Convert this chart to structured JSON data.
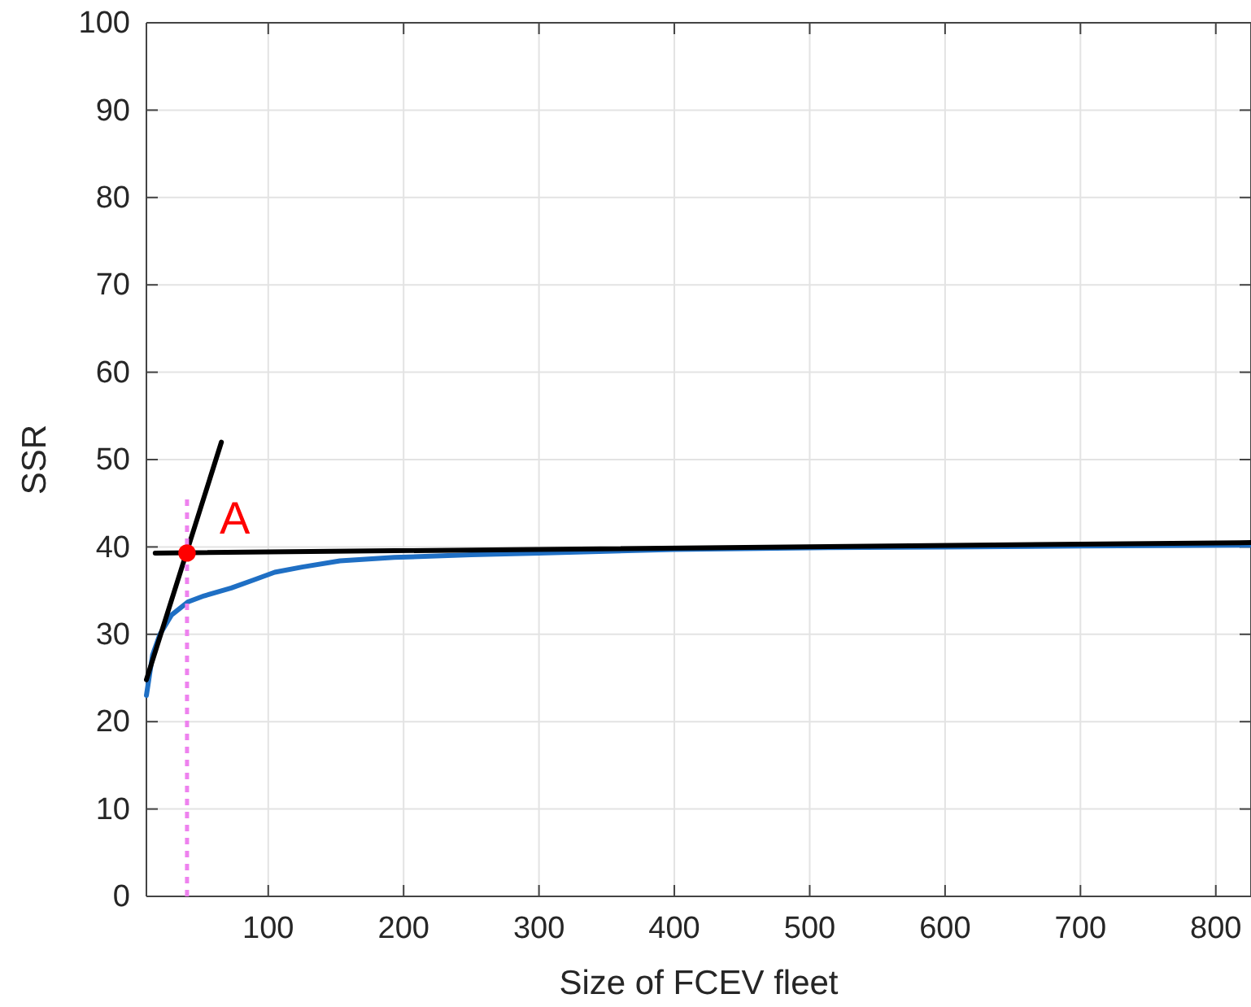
{
  "chart_data": {
    "type": "line",
    "xlabel": "Size of FCEV fleet",
    "ylabel": "SSR",
    "xlim": [
      10,
      826
    ],
    "ylim": [
      0,
      100
    ],
    "xticks": [
      100,
      200,
      300,
      400,
      500,
      600,
      700,
      800
    ],
    "yticks": [
      0,
      10,
      20,
      30,
      40,
      50,
      60,
      70,
      80,
      90,
      100
    ],
    "grid": true,
    "series": [
      {
        "color": "#1f6fc4",
        "x": [
          10,
          14.5,
          20,
          28.5,
          40.6,
          52.6,
          72.7,
          88.8,
          104.8,
          125,
          153,
          193,
          250,
          300,
          400,
          500,
          600,
          700,
          826
        ],
        "values": [
          23,
          27.6,
          30,
          32.2,
          33.7,
          34.4,
          35.3,
          36.2,
          37.1,
          37.7,
          38.4,
          38.8,
          39.1,
          39.3,
          39.7,
          39.9,
          40,
          40.1,
          40.2
        ]
      },
      {
        "color": "#000000",
        "x": [
          10,
          65.4
        ],
        "values": [
          24.8,
          52
        ]
      },
      {
        "color": "#000000",
        "x": [
          16.5,
          826
        ],
        "values": [
          39.3,
          40.5
        ]
      },
      {
        "color": "#ee82ee",
        "line_style": "dotted",
        "x": [
          40,
          40
        ],
        "values": [
          0,
          46
        ]
      },
      {
        "type": "scatter",
        "color": "#ff0000",
        "marker": "circle",
        "x": [
          40
        ],
        "values": [
          39.3
        ]
      }
    ],
    "annotations": [
      {
        "text": "A",
        "x": 40,
        "y": 39.3
      }
    ]
  }
}
